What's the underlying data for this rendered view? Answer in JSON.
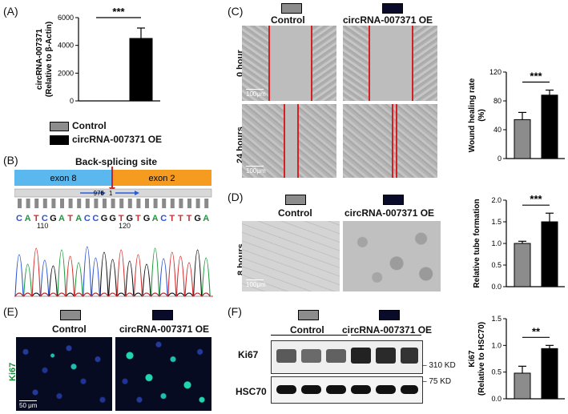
{
  "panels": {
    "A": "(A)",
    "B": "(B)",
    "C": "(C)",
    "D": "(D)",
    "E": "(E)",
    "F": "(F)"
  },
  "legend": {
    "control": "Control",
    "oe": "circRNA-007371 OE"
  },
  "colors": {
    "control": "#8c8c8c",
    "oe": "#000000",
    "exon8": "#5bb8ef",
    "exon2": "#f59b1f",
    "scratch_line": "#d42020",
    "ki67_green": "#1a8a3a",
    "nuclei_blue": "#1c2a8a"
  },
  "panel_b": {
    "title": "Back-splicing site",
    "exon_left": "exon 8",
    "exon_right": "exon 2",
    "primer_left": "976",
    "primer_right": "1",
    "sequence": [
      "C",
      "A",
      "T",
      "C",
      "G",
      "A",
      "T",
      "A",
      "C",
      "C",
      "G",
      "G",
      "T",
      "G",
      "T",
      "G",
      "A",
      "C",
      "T",
      "T",
      "T",
      "G",
      "A"
    ],
    "pos1": "110",
    "pos2": "120"
  },
  "panel_c": {
    "rows": [
      "0 hour",
      "24 hours"
    ],
    "cols": [
      "Control",
      "circRNA-007371 OE"
    ],
    "scale": "100μm"
  },
  "panel_d": {
    "row": "8 hours",
    "cols": [
      "Control",
      "circRNA-007371 OE"
    ],
    "scale": "100μm"
  },
  "panel_e": {
    "row": "Ki67",
    "cols": [
      "Control",
      "circRNA-007371 OE"
    ],
    "scale": "50 μm"
  },
  "panel_f": {
    "groups": [
      "Control",
      "circRNA-007371 OE"
    ],
    "bands": [
      "Ki67",
      "HSC70"
    ],
    "markers": [
      "310 KD",
      "75 KD"
    ]
  },
  "chart_data": [
    {
      "panel": "A",
      "type": "bar",
      "categories": [
        "Control",
        "circRNA-007371 OE"
      ],
      "values": [
        0,
        4500
      ],
      "errors": [
        0,
        750
      ],
      "ylabel": "circRNA-007371 (Relative to β-Actin)",
      "ylim": [
        0,
        6000
      ],
      "yticks": [
        "0",
        "2000",
        "4000",
        "6000"
      ],
      "significance": "***"
    },
    {
      "panel": "C",
      "type": "bar",
      "categories": [
        "Control",
        "circRNA-007371 OE"
      ],
      "values": [
        54,
        88
      ],
      "errors": [
        10,
        7
      ],
      "ylabel": "Wound healing rate (%)",
      "ylim": [
        0,
        120
      ],
      "yticks": [
        "0",
        "40",
        "80",
        "120"
      ],
      "significance": "***"
    },
    {
      "panel": "D",
      "type": "bar",
      "categories": [
        "Control",
        "circRNA-007371 OE"
      ],
      "values": [
        1.0,
        1.5
      ],
      "errors": [
        0.05,
        0.2
      ],
      "ylabel": "Relative tube formation",
      "ylim": [
        0,
        2.0
      ],
      "yticks": [
        "0.0",
        "0.5",
        "1.0",
        "1.5",
        "2.0"
      ],
      "significance": "***"
    },
    {
      "panel": "F",
      "type": "bar",
      "categories": [
        "Control",
        "circRNA-007371 OE"
      ],
      "values": [
        0.48,
        0.94
      ],
      "errors": [
        0.13,
        0.06
      ],
      "ylabel": "Ki67 (Relative to HSC70)",
      "ylim": [
        0,
        1.5
      ],
      "yticks": [
        "0.0",
        "0.5",
        "1.0",
        "1.5"
      ],
      "significance": "**"
    }
  ]
}
